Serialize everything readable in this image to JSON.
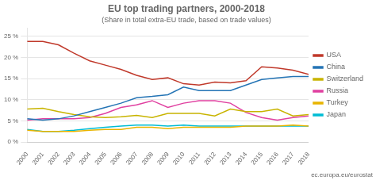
{
  "chart_data": {
    "type": "line",
    "title": "EU top trading partners, 2000-2018",
    "subtitle": "(Share in total extra-EU trade, based on trade values)",
    "x": [
      2000,
      2001,
      2002,
      2003,
      2004,
      2005,
      2006,
      2007,
      2008,
      2009,
      2010,
      2011,
      2012,
      2013,
      2014,
      2015,
      2016,
      2017,
      2018
    ],
    "series": [
      {
        "name": "USA",
        "color": "#c0392b",
        "values": [
          23.8,
          23.8,
          23.0,
          21.0,
          19.2,
          18.2,
          17.2,
          15.8,
          14.8,
          15.2,
          13.8,
          13.5,
          14.2,
          14.0,
          14.5,
          17.8,
          17.5,
          17.0,
          16.0
        ]
      },
      {
        "name": "China",
        "color": "#2474b5",
        "values": [
          5.5,
          5.2,
          5.5,
          6.2,
          7.2,
          8.2,
          9.2,
          10.5,
          10.8,
          11.2,
          13.0,
          12.2,
          12.2,
          12.2,
          13.5,
          14.8,
          15.2,
          15.5,
          15.5
        ]
      },
      {
        "name": "Switzerland",
        "color": "#c8b400",
        "values": [
          7.8,
          8.0,
          7.2,
          6.5,
          6.0,
          5.8,
          6.0,
          6.3,
          5.8,
          6.8,
          6.8,
          6.8,
          6.2,
          7.8,
          7.2,
          7.2,
          7.8,
          6.2,
          6.5
        ]
      },
      {
        "name": "Russia",
        "color": "#e040a0",
        "values": [
          5.2,
          5.5,
          5.5,
          5.5,
          5.8,
          6.8,
          8.2,
          8.8,
          9.8,
          8.2,
          9.2,
          9.8,
          9.8,
          9.2,
          7.0,
          5.8,
          5.2,
          5.8,
          6.2
        ]
      },
      {
        "name": "Turkey",
        "color": "#e8b400",
        "values": [
          2.8,
          2.5,
          2.5,
          2.5,
          2.8,
          3.0,
          3.0,
          3.5,
          3.5,
          3.2,
          3.5,
          3.5,
          3.5,
          3.5,
          3.8,
          3.8,
          3.8,
          4.0,
          3.8
        ]
      },
      {
        "name": "Japan",
        "color": "#00bcd4",
        "values": [
          3.0,
          2.5,
          2.5,
          2.8,
          3.2,
          3.5,
          3.8,
          4.0,
          4.0,
          3.8,
          4.0,
          3.8,
          3.8,
          3.8,
          3.8,
          3.8,
          3.8,
          3.8,
          3.8
        ]
      }
    ],
    "xlim": [
      2000,
      2018
    ],
    "xticks": [
      2000,
      2001,
      2002,
      2003,
      2004,
      2005,
      2006,
      2007,
      2008,
      2009,
      2010,
      2011,
      2012,
      2013,
      2014,
      2015,
      2016,
      2017,
      2018
    ],
    "ylim": [
      0,
      27
    ],
    "yticks": [
      {
        "value": 0,
        "label": "0 %"
      },
      {
        "value": 5,
        "label": "5 %"
      },
      {
        "value": 10,
        "label": "10 %"
      },
      {
        "value": 15,
        "label": "15 %"
      },
      {
        "value": 20,
        "label": "20 %"
      },
      {
        "value": 25,
        "label": "25 %"
      }
    ],
    "grid": true,
    "legend": "right",
    "annotations": [
      "ec.europa.eu/eurostat"
    ]
  }
}
